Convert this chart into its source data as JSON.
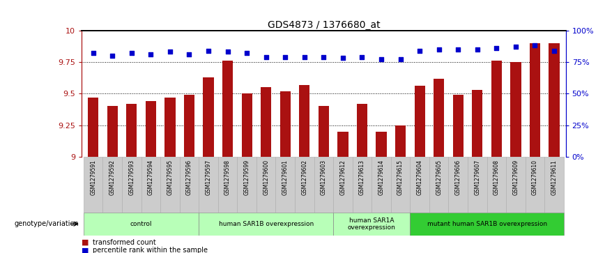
{
  "title": "GDS4873 / 1376680_at",
  "samples": [
    "GSM1279591",
    "GSM1279592",
    "GSM1279593",
    "GSM1279594",
    "GSM1279595",
    "GSM1279596",
    "GSM1279597",
    "GSM1279598",
    "GSM1279599",
    "GSM1279600",
    "GSM1279601",
    "GSM1279602",
    "GSM1279603",
    "GSM1279612",
    "GSM1279613",
    "GSM1279614",
    "GSM1279615",
    "GSM1279604",
    "GSM1279605",
    "GSM1279606",
    "GSM1279607",
    "GSM1279608",
    "GSM1279609",
    "GSM1279610",
    "GSM1279611"
  ],
  "red_values": [
    9.47,
    9.4,
    9.42,
    9.44,
    9.47,
    9.49,
    9.63,
    9.76,
    9.5,
    9.55,
    9.52,
    9.57,
    9.4,
    9.2,
    9.42,
    9.2,
    9.25,
    9.56,
    9.62,
    9.49,
    9.53,
    9.76,
    9.75,
    9.9,
    9.9
  ],
  "blue_values": [
    82,
    80,
    82,
    81,
    83,
    81,
    84,
    83,
    82,
    79,
    79,
    79,
    79,
    78,
    79,
    77,
    77,
    84,
    85,
    85,
    85,
    86,
    87,
    88,
    84
  ],
  "group_defs": [
    {
      "start": 0,
      "end": 5,
      "color": "#b8ffb8",
      "label": "control"
    },
    {
      "start": 6,
      "end": 12,
      "color": "#b8ffb8",
      "label": "human SAR1B overexpression"
    },
    {
      "start": 13,
      "end": 16,
      "color": "#b8ffb8",
      "label": "human SAR1A\noverexpression"
    },
    {
      "start": 17,
      "end": 24,
      "color": "#33cc33",
      "label": "mutant human SAR1B overexpression"
    }
  ],
  "ymin": 9.0,
  "ymax": 10.0,
  "yticks": [
    9.0,
    9.25,
    9.5,
    9.75,
    10.0
  ],
  "ytick_labels": [
    "9",
    "9.25",
    "9.5",
    "9.75",
    "10"
  ],
  "right_yticks": [
    0,
    25,
    50,
    75,
    100
  ],
  "right_ytick_labels": [
    "0%",
    "25%",
    "50%",
    "75%",
    "100%"
  ],
  "bar_color": "#aa1111",
  "dot_color": "#0000cc",
  "cell_color": "#cccccc",
  "cell_edge_color": "#aaaaaa"
}
